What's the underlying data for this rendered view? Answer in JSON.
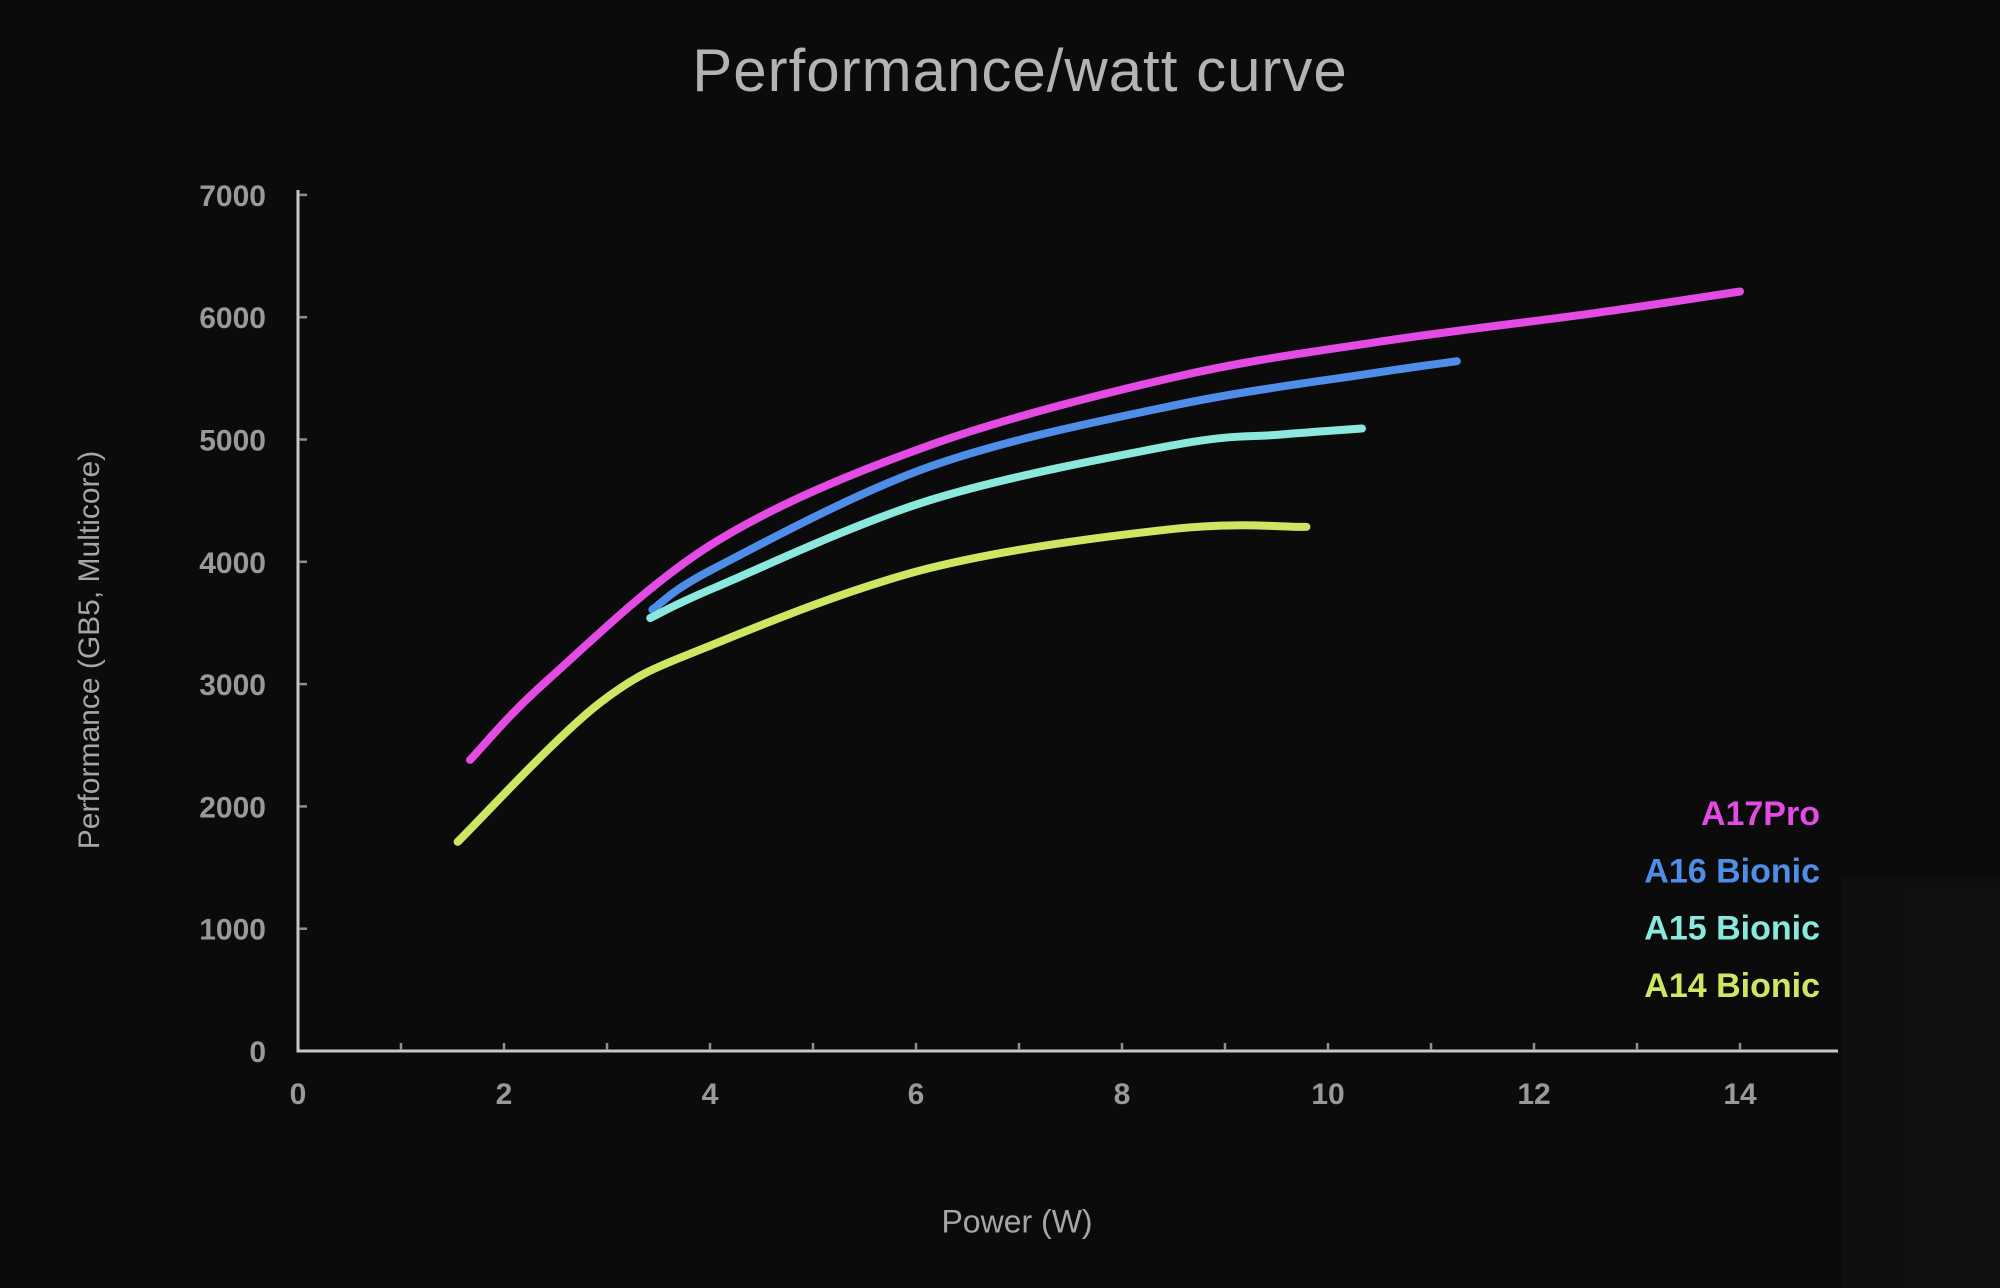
{
  "title": "Performance/watt curve",
  "chart_data": {
    "type": "line",
    "title": "Performance/watt curve",
    "xlabel": "Power (W)",
    "ylabel": "Performance (GB5, Multicore)",
    "xlim": [
      0,
      15
    ],
    "ylim": [
      0,
      7000
    ],
    "x_ticks": [
      0,
      2,
      4,
      6,
      8,
      10,
      12,
      14
    ],
    "x_minor_ticks": [
      1,
      2,
      3,
      4,
      5,
      6,
      7,
      8,
      9,
      10,
      11,
      12,
      13,
      14
    ],
    "y_ticks": [
      0,
      1000,
      2000,
      3000,
      4000,
      5000,
      6000,
      7000
    ],
    "grid": false,
    "legend_position": "inside-right",
    "background_color": "#0b0b0c",
    "axis_color": "#c8c8c8",
    "tick_label_color": "#999999",
    "title_color": "#b3b3b3",
    "series": [
      {
        "name": "A17Pro",
        "color": "#e44ae4",
        "points": [
          [
            1.67,
            2380
          ],
          [
            2.42,
            3030
          ],
          [
            4.05,
            4160
          ],
          [
            6.14,
            4955
          ],
          [
            8.51,
            5510
          ],
          [
            10.5,
            5800
          ],
          [
            12.6,
            6035
          ],
          [
            14.0,
            6210
          ]
        ]
      },
      {
        "name": "A16 Bionic",
        "color": "#4f8ee8",
        "points": [
          [
            3.44,
            3610
          ],
          [
            4.05,
            3950
          ],
          [
            6.14,
            4780
          ],
          [
            8.51,
            5280
          ],
          [
            10.5,
            5550
          ],
          [
            11.25,
            5640
          ]
        ]
      },
      {
        "name": "A15 Bionic",
        "color": "#8ae9dc",
        "points": [
          [
            3.42,
            3540
          ],
          [
            4.05,
            3790
          ],
          [
            6.14,
            4505
          ],
          [
            8.51,
            4955
          ],
          [
            9.53,
            5040
          ],
          [
            10.33,
            5090
          ]
        ]
      },
      {
        "name": "A14 Bionic",
        "color": "#cde763",
        "points": [
          [
            1.55,
            1710
          ],
          [
            2.93,
            2846
          ],
          [
            4.05,
            3330
          ],
          [
            6.14,
            3950
          ],
          [
            8.51,
            4270
          ],
          [
            9.79,
            4285
          ]
        ]
      }
    ]
  }
}
